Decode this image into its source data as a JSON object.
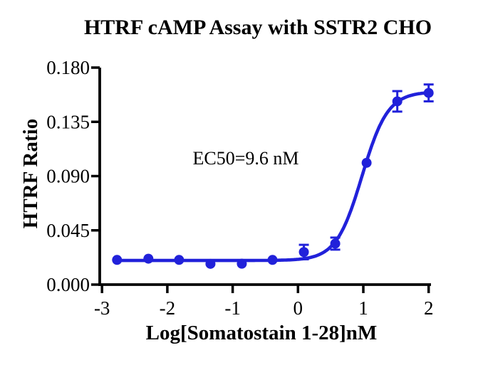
{
  "chart": {
    "colors": {
      "curve": "#2121DA",
      "axis": "#000000",
      "background": "#FFFFFF"
    }
  },
  "chart_data": {
    "type": "scatter",
    "title": "HTRF cAMP Assay with SSTR2 CHO",
    "xlabel": "Log[Somatostain 1-28]nM",
    "ylabel": "HTRF Ratio",
    "annotation": "EC50=9.6 nM",
    "x": [
      -2.77,
      -2.29,
      -1.82,
      -1.34,
      -0.86,
      -0.39,
      0.09,
      0.57,
      1.05,
      1.52,
      2.0
    ],
    "y": [
      0.0205,
      0.0215,
      0.0205,
      0.0172,
      0.0173,
      0.0205,
      0.027,
      0.034,
      0.101,
      0.152,
      0.159
    ],
    "y_err": [
      0,
      0,
      0,
      0,
      0,
      0,
      0.006,
      0.005,
      0,
      0.0085,
      0.007
    ],
    "x_ticks": [
      -3,
      -2,
      -1,
      0,
      1,
      2
    ],
    "y_ticks": [
      0,
      0.045,
      0.09,
      0.135,
      0.18
    ],
    "xlim": [
      -3,
      2
    ],
    "ylim": [
      0,
      0.18
    ],
    "grid": false,
    "legend": "none",
    "fit": {
      "model": "4PL sigmoid",
      "bottom": 0.02,
      "top": 0.16,
      "log_ec50": 0.98,
      "hill_slope": 2.2,
      "x_range": [
        -2.77,
        2.0
      ]
    }
  }
}
